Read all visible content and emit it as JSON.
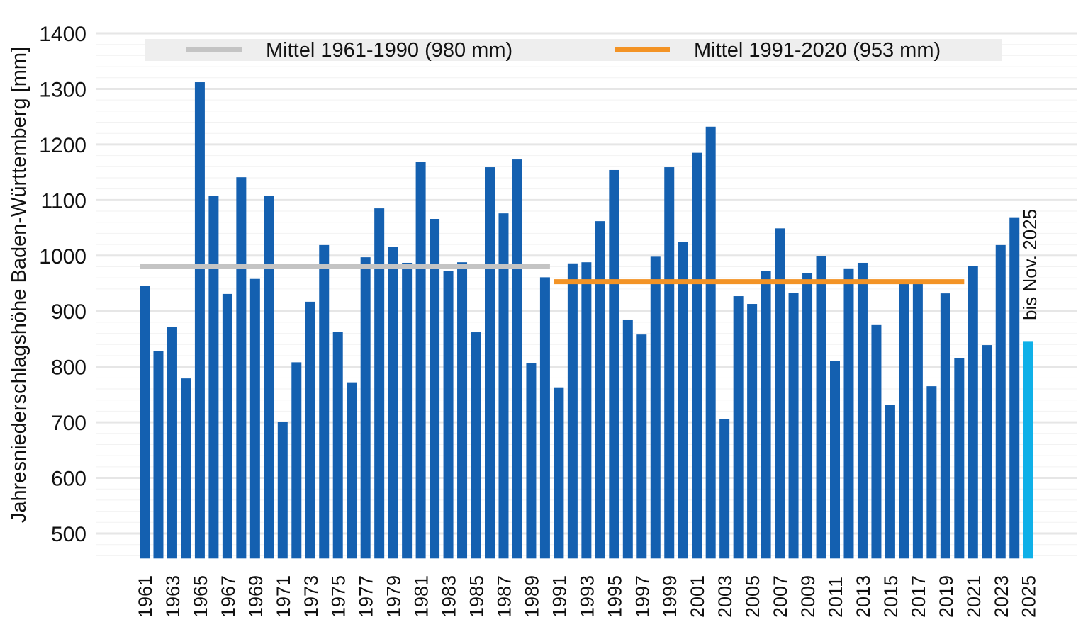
{
  "chart_data": {
    "type": "bar",
    "title": "",
    "xlabel": "",
    "ylabel": "Jahresniederschlagshöhe Baden-Württemberg [mm]",
    "ylim": [
      455,
      1400
    ],
    "yticks": [
      500,
      600,
      700,
      800,
      900,
      1000,
      1100,
      1200,
      1300,
      1400
    ],
    "grid": true,
    "legend_placement": "top",
    "categories": [
      1961,
      1962,
      1963,
      1964,
      1965,
      1966,
      1967,
      1968,
      1969,
      1970,
      1971,
      1972,
      1973,
      1974,
      1975,
      1976,
      1977,
      1978,
      1979,
      1980,
      1981,
      1982,
      1983,
      1984,
      1985,
      1986,
      1987,
      1988,
      1989,
      1990,
      1991,
      1992,
      1993,
      1994,
      1995,
      1996,
      1997,
      1998,
      1999,
      2000,
      2001,
      2002,
      2003,
      2004,
      2005,
      2006,
      2007,
      2008,
      2009,
      2010,
      2011,
      2012,
      2013,
      2014,
      2015,
      2016,
      2017,
      2018,
      2019,
      2020,
      2021,
      2022,
      2023,
      2024,
      2025
    ],
    "values": [
      946,
      828,
      871,
      779,
      1312,
      1107,
      931,
      1141,
      958,
      1108,
      701,
      808,
      917,
      1019,
      863,
      772,
      997,
      1085,
      1016,
      987,
      1169,
      1066,
      972,
      988,
      862,
      1159,
      1076,
      1173,
      807,
      961,
      763,
      986,
      988,
      1062,
      1154,
      885,
      858,
      998,
      1159,
      1025,
      1185,
      1232,
      706,
      927,
      913,
      972,
      1049,
      933,
      968,
      999,
      811,
      977,
      987,
      875,
      732,
      952,
      950,
      765,
      932,
      815,
      981,
      839,
      1019,
      1069,
      845
    ],
    "bar_color": "#1460b0",
    "partial_year_color": "#0fb0e8",
    "partial_year_annotation": "bis Nov. 2025",
    "reference_lines": [
      {
        "name": "Mittel 1961-1990 (980 mm)",
        "value": 980,
        "from": 1961,
        "to": 1990,
        "color": "#c4c4c4"
      },
      {
        "name": "Mittel 1991-2020 (953 mm)",
        "value": 953,
        "from": 1991,
        "to": 2020,
        "color": "#f39325"
      }
    ]
  }
}
